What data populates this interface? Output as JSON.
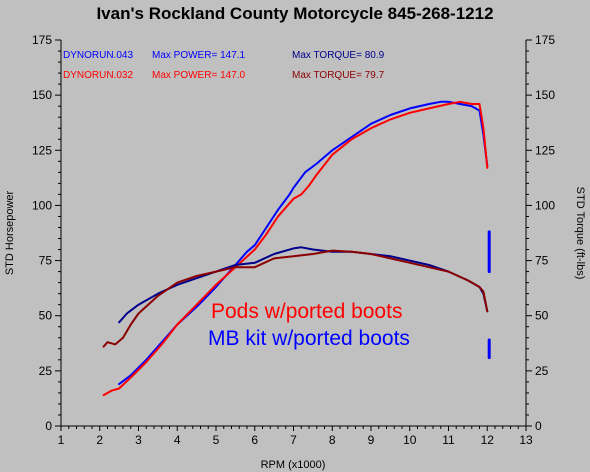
{
  "chart_data": {
    "type": "line",
    "title": "Ivan's Rockland County Motorcycle  845-268-1212",
    "xlabel": "RPM (x1000)",
    "ylabel_left": "STD Horsepower",
    "ylabel_right": "STD Torque (ft-lbs)",
    "xlim": [
      1,
      13
    ],
    "ylim": [
      0,
      175
    ],
    "x_ticks": [
      "1",
      "2",
      "3",
      "4",
      "5",
      "6",
      "7",
      "8",
      "9",
      "10",
      "11",
      "12",
      "13"
    ],
    "y_ticks": [
      "0",
      "25",
      "50",
      "75",
      "100",
      "125",
      "150",
      "175"
    ],
    "grid": false,
    "legend": [
      {
        "run": "DYNORUN.043",
        "power_text": "Max POWER= 147.1",
        "torque_text": "Max TORQUE= 80.9",
        "color": "#0000ff"
      },
      {
        "run": "DYNORUN.032",
        "power_text": "Max POWER= 147.0",
        "torque_text": "Max TORQUE= 79.7",
        "color": "#ff0000"
      }
    ],
    "annotations": [
      {
        "text": "Pods w/ported boots",
        "color": "#ff0000"
      },
      {
        "text": "MB kit w/ported boots",
        "color": "#0000ff"
      }
    ],
    "series": [
      {
        "name": "DYNORUN.043 horsepower",
        "color": "#0000ff",
        "width": 2,
        "x": [
          2.5,
          2.8,
          3.2,
          3.6,
          4.0,
          4.5,
          5.0,
          5.5,
          5.8,
          6.0,
          6.3,
          6.6,
          6.9,
          7.0,
          7.3,
          7.6,
          8.0,
          8.5,
          9.0,
          9.5,
          10.0,
          10.5,
          10.8,
          11.0,
          11.3,
          11.6,
          11.8,
          11.9,
          12.0
        ],
        "y": [
          19,
          23,
          30,
          38,
          46,
          54,
          63,
          73,
          79,
          82,
          90,
          98,
          105,
          108,
          115,
          119,
          125,
          131,
          137,
          141,
          144,
          146,
          147,
          147,
          146,
          145,
          143,
          132,
          118
        ]
      },
      {
        "name": "DYNORUN.032 horsepower",
        "color": "#ff0000",
        "width": 2,
        "x": [
          2.1,
          2.3,
          2.5,
          2.8,
          3.2,
          3.6,
          4.0,
          4.5,
          5.0,
          5.5,
          6.0,
          6.3,
          6.6,
          6.9,
          7.0,
          7.2,
          7.4,
          7.6,
          8.0,
          8.5,
          9.0,
          9.5,
          10.0,
          10.5,
          11.0,
          11.3,
          11.6,
          11.8,
          11.9,
          12.0
        ],
        "y": [
          14,
          16,
          17,
          22,
          29,
          37,
          46,
          55,
          64,
          72,
          80,
          87,
          95,
          101,
          103,
          105,
          109,
          114,
          123,
          130,
          135,
          139,
          142,
          144,
          146,
          147,
          146,
          146,
          135,
          117
        ]
      },
      {
        "name": "DYNORUN.043 torque",
        "color": "#00008b",
        "width": 2,
        "x": [
          2.5,
          2.7,
          3.0,
          3.5,
          4.0,
          4.5,
          5.0,
          5.5,
          6.0,
          6.5,
          7.0,
          7.2,
          7.5,
          8.0,
          8.5,
          9.0,
          9.5,
          10.0,
          10.5,
          11.0,
          11.5,
          11.8,
          11.9,
          12.0
        ],
        "y": [
          47,
          51,
          55,
          60,
          64,
          67,
          70,
          73,
          74,
          78,
          80.5,
          81,
          80,
          79,
          79,
          78,
          77,
          75,
          73,
          70,
          66,
          63,
          60,
          52
        ]
      },
      {
        "name": "DYNORUN.032 torque",
        "color": "#8b0000",
        "width": 2,
        "x": [
          2.1,
          2.2,
          2.4,
          2.6,
          2.8,
          3.0,
          3.5,
          4.0,
          4.5,
          5.0,
          5.5,
          6.0,
          6.5,
          7.0,
          7.5,
          8.0,
          8.5,
          9.0,
          9.5,
          10.0,
          10.5,
          11.0,
          11.5,
          11.8,
          11.9,
          12.0
        ],
        "y": [
          36,
          38,
          37,
          40,
          46,
          51,
          59,
          65,
          68,
          70,
          72,
          72,
          76,
          77,
          78,
          79.5,
          79,
          78,
          76,
          74,
          72,
          70,
          66,
          63,
          61,
          52
        ]
      },
      {
        "name": "DYNORUN.043 tail fragment",
        "color": "#0000ff",
        "width": 3,
        "x": [
          12.05,
          12.05
        ],
        "y": [
          88,
          70
        ]
      },
      {
        "name": "DYNORUN.043 tail fragment 2",
        "color": "#0000ff",
        "width": 3,
        "x": [
          12.05,
          12.05
        ],
        "y": [
          39,
          31
        ]
      }
    ]
  }
}
